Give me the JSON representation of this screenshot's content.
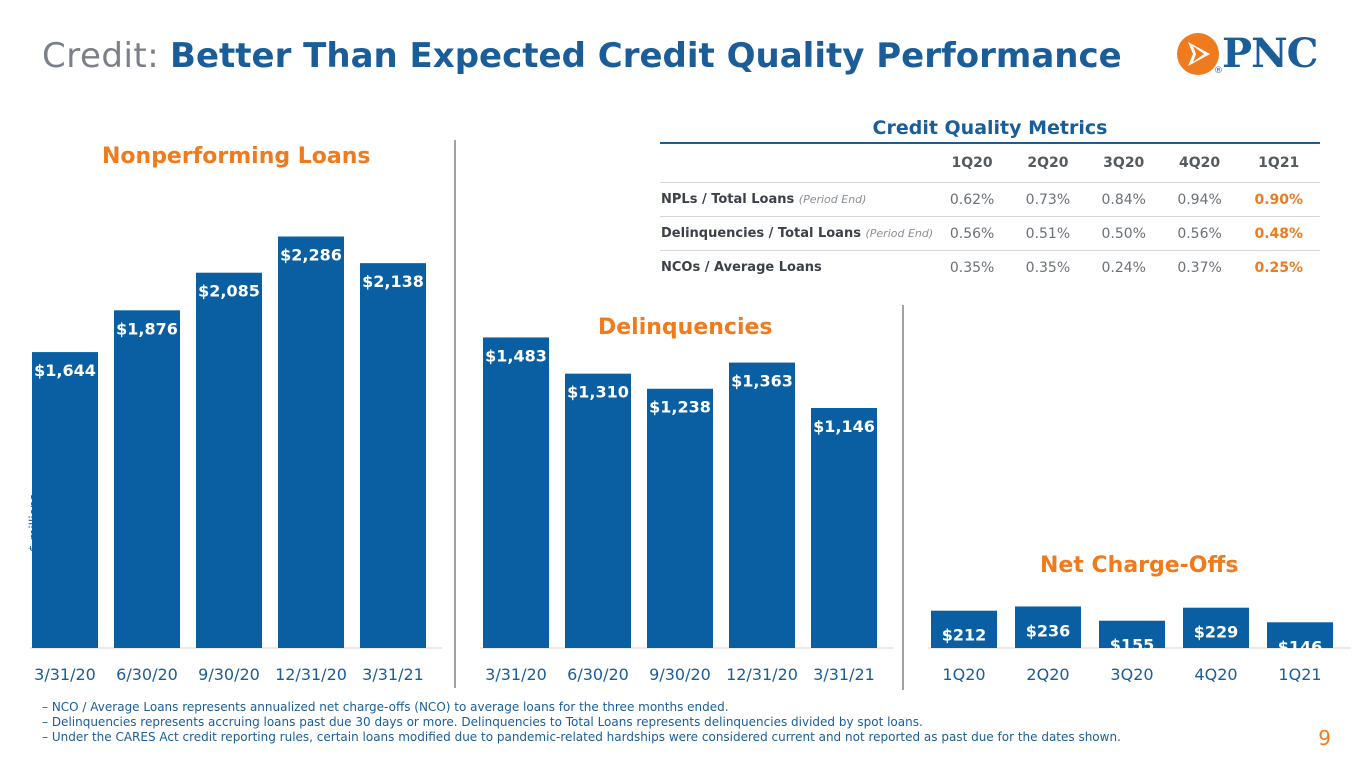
{
  "header": {
    "title_prefix": "Credit:",
    "title_main": "Better Than Expected Credit Quality Performance"
  },
  "logo": {
    "text": "PNC",
    "mark": "®"
  },
  "axis_unit_label": "$ millions",
  "colors": {
    "bar": "#0a5fa3",
    "accent": "#ef7b1e",
    "brand": "#1a5d99"
  },
  "chart_data": [
    {
      "id": "npl",
      "type": "bar",
      "title": "Nonperforming Loans",
      "categories": [
        "3/31/20",
        "6/30/20",
        "9/30/20",
        "12/31/20",
        "3/31/21"
      ],
      "values": [
        1644,
        1876,
        2085,
        2286,
        2138
      ],
      "labels": [
        "$1,644",
        "$1,876",
        "$2,085",
        "$2,286",
        "$2,138"
      ],
      "ylabel": "$ millions",
      "ylim": [
        0,
        2500
      ]
    },
    {
      "id": "delq",
      "type": "bar",
      "title": "Delinquencies",
      "categories": [
        "3/31/20",
        "6/30/20",
        "9/30/20",
        "12/31/20",
        "3/31/21"
      ],
      "values": [
        1483,
        1310,
        1238,
        1363,
        1146
      ],
      "labels": [
        "$1,483",
        "$1,310",
        "$1,238",
        "$1,363",
        "$1,146"
      ],
      "ylim": [
        0,
        1700
      ]
    },
    {
      "id": "nco",
      "type": "bar",
      "title": "Net Charge-Offs",
      "categories": [
        "1Q20",
        "2Q20",
        "3Q20",
        "4Q20",
        "1Q21"
      ],
      "values": [
        212,
        236,
        155,
        229,
        146
      ],
      "labels": [
        "$212",
        "$236",
        "$155",
        "$229",
        "$146"
      ],
      "ylim": [
        0,
        250
      ]
    }
  ],
  "metrics": {
    "title": "Credit Quality Metrics",
    "columns": [
      "1Q20",
      "2Q20",
      "3Q20",
      "4Q20",
      "1Q21"
    ],
    "rows": [
      {
        "label": "NPLs / Total Loans",
        "note": "(Period End)",
        "values": [
          "0.62%",
          "0.73%",
          "0.84%",
          "0.94%",
          "0.90%"
        ]
      },
      {
        "label": "Delinquencies / Total Loans",
        "note": "(Period End)",
        "values": [
          "0.56%",
          "0.51%",
          "0.50%",
          "0.56%",
          "0.48%"
        ]
      },
      {
        "label": "NCOs / Average Loans",
        "note": "",
        "values": [
          "0.35%",
          "0.35%",
          "0.24%",
          "0.37%",
          "0.25%"
        ]
      }
    ]
  },
  "footnotes": [
    "– NCO / Average Loans represents annualized net charge-offs (NCO) to average loans for the three months ended.",
    "– Delinquencies represents accruing loans past due 30 days or more. Delinquencies to Total Loans represents delinquencies divided by spot loans.",
    "– Under the CARES Act credit reporting rules, certain loans modified due to pandemic-related hardships were considered current and not reported as past due for the dates shown."
  ],
  "page_number": "9"
}
